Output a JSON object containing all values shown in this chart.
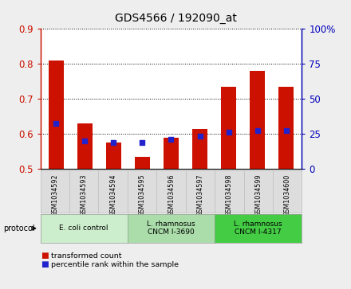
{
  "title": "GDS4566 / 192090_at",
  "samples": [
    "GSM1034592",
    "GSM1034593",
    "GSM1034594",
    "GSM1034595",
    "GSM1034596",
    "GSM1034597",
    "GSM1034598",
    "GSM1034599",
    "GSM1034600"
  ],
  "transformed_count": [
    0.81,
    0.63,
    0.575,
    0.535,
    0.59,
    0.615,
    0.735,
    0.78,
    0.735
  ],
  "percentile_rank_left": [
    0.63,
    0.58,
    0.575,
    0.575,
    0.585,
    0.595,
    0.605,
    0.61,
    0.61
  ],
  "ylim_left": [
    0.5,
    0.9
  ],
  "ylim_right": [
    0,
    100
  ],
  "yticks_left": [
    0.5,
    0.6,
    0.7,
    0.8,
    0.9
  ],
  "yticks_right": [
    0,
    25,
    50,
    75,
    100
  ],
  "ytick_labels_right": [
    "0",
    "25",
    "50",
    "75",
    "100%"
  ],
  "bar_color": "#cc1100",
  "dot_color": "#2222cc",
  "bg_color": "#eeeeee",
  "plot_bg": "#ffffff",
  "groups": [
    {
      "label": "E. coli control",
      "start": 0,
      "end": 3,
      "color": "#cceecc"
    },
    {
      "label": "L. rhamnosus\nCNCM I-3690",
      "start": 3,
      "end": 6,
      "color": "#aaddaa"
    },
    {
      "label": "L. rhamnosus\nCNCM I-4317",
      "start": 6,
      "end": 9,
      "color": "#44cc44"
    }
  ],
  "legend": [
    {
      "label": "transformed count",
      "color": "#cc1100"
    },
    {
      "label": "percentile rank within the sample",
      "color": "#2222cc"
    }
  ],
  "protocol_label": "protocol",
  "left_tick_color": "#cc1100",
  "right_tick_color": "#0000bb",
  "title_fontsize": 10
}
